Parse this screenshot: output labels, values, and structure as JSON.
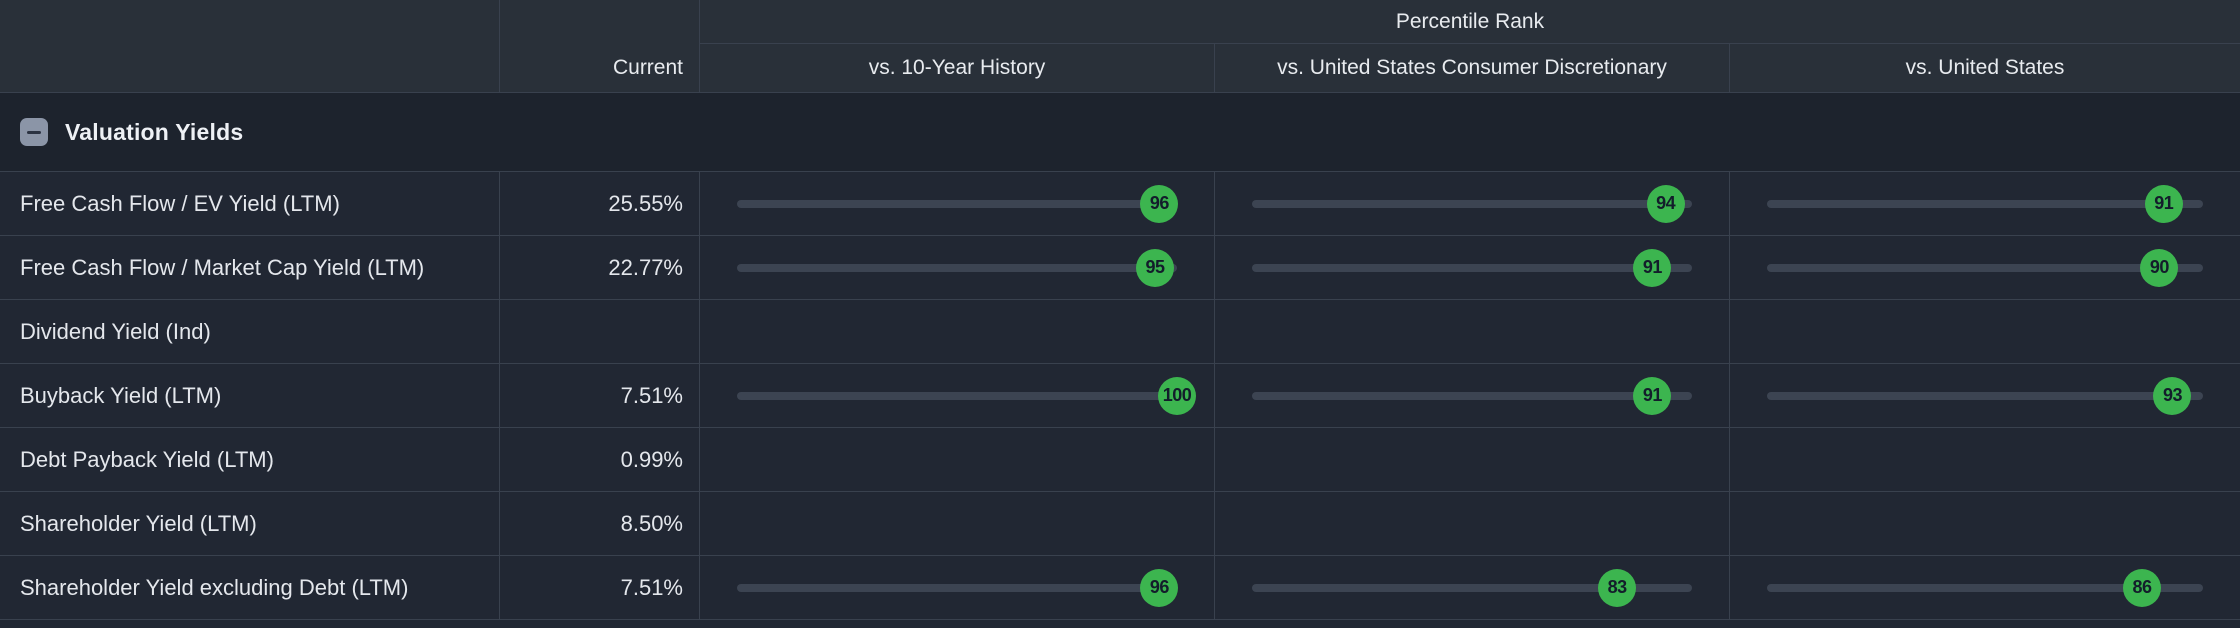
{
  "table": {
    "columns": {
      "current_label": "Current",
      "percentile_group_label": "Percentile Rank",
      "percentile_columns": [
        "vs. 10-Year History",
        "vs. United States Consumer Discretionary",
        "vs. United States"
      ]
    },
    "section": {
      "title": "Valuation Yields",
      "collapse_icon": "minus-icon",
      "state": "expanded"
    },
    "rows": [
      {
        "label": "Free Cash Flow / EV Yield (LTM)",
        "current": "25.55%",
        "percentiles": [
          96,
          94,
          91
        ]
      },
      {
        "label": "Free Cash Flow / Market Cap Yield (LTM)",
        "current": "22.77%",
        "percentiles": [
          95,
          91,
          90
        ]
      },
      {
        "label": "Dividend Yield (Ind)",
        "current": "",
        "percentiles": [
          null,
          null,
          null
        ]
      },
      {
        "label": "Buyback Yield (LTM)",
        "current": "7.51%",
        "percentiles": [
          100,
          91,
          93
        ]
      },
      {
        "label": "Debt Payback Yield (LTM)",
        "current": "0.99%",
        "percentiles": [
          null,
          null,
          null
        ]
      },
      {
        "label": "Shareholder Yield (LTM)",
        "current": "8.50%",
        "percentiles": [
          null,
          null,
          null
        ]
      },
      {
        "label": "Shareholder Yield excluding Debt (LTM)",
        "current": "7.51%",
        "percentiles": [
          96,
          83,
          86
        ]
      }
    ],
    "percentile_scale": {
      "min": 0,
      "max": 100
    }
  },
  "colors": {
    "badge_green": "#3cb54f",
    "badge_text": "#131d2b",
    "header_bg": "#293039",
    "row_bg": "#212733",
    "section_bg": "#1d232d",
    "grid_line": "#39414e",
    "track": "#3c4452",
    "text_primary": "#e4e7ec",
    "icon_slate": "#8b95a7"
  }
}
